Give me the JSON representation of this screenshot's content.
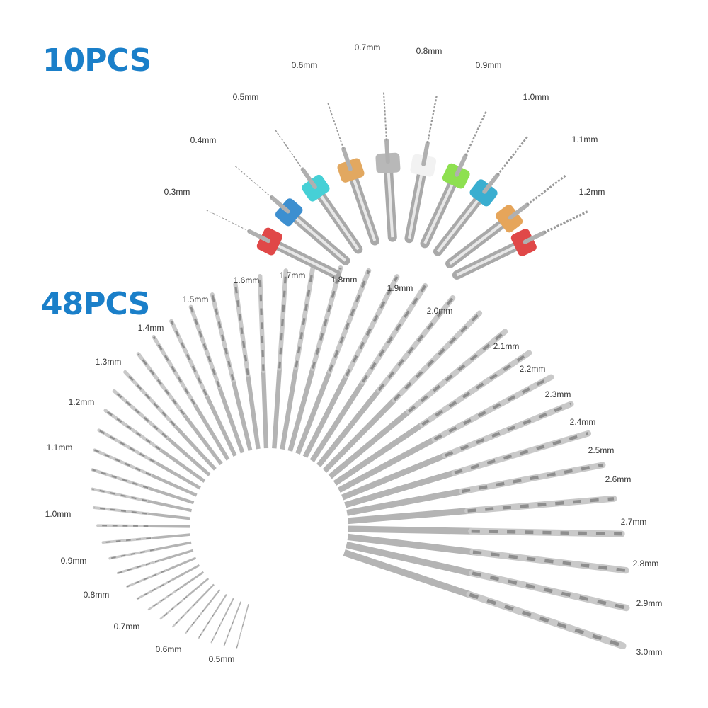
{
  "badges": {
    "top": "10PCS",
    "bottom": "48PCS"
  },
  "small_set": {
    "labels": [
      "0.3mm",
      "0.4mm",
      "0.5mm",
      "0.6mm",
      "0.7mm",
      "0.8mm",
      "0.9mm",
      "1.0mm",
      "1.1mm",
      "1.2mm"
    ]
  },
  "large_set": {
    "labels": [
      "0.5mm",
      "0.6mm",
      "0.7mm",
      "0.8mm",
      "0.9mm",
      "1.0mm",
      "1.1mm",
      "1.2mm",
      "1.3mm",
      "1.4mm",
      "1.5mm",
      "1.6mm",
      "1.7mm",
      "1.8mm",
      "1.9mm",
      "2.0mm",
      "2.1mm",
      "2.2mm",
      "2.3mm",
      "2.4mm",
      "2.5mm",
      "2.6mm",
      "2.7mm",
      "2.8mm",
      "2.9mm",
      "3.0mm"
    ]
  }
}
